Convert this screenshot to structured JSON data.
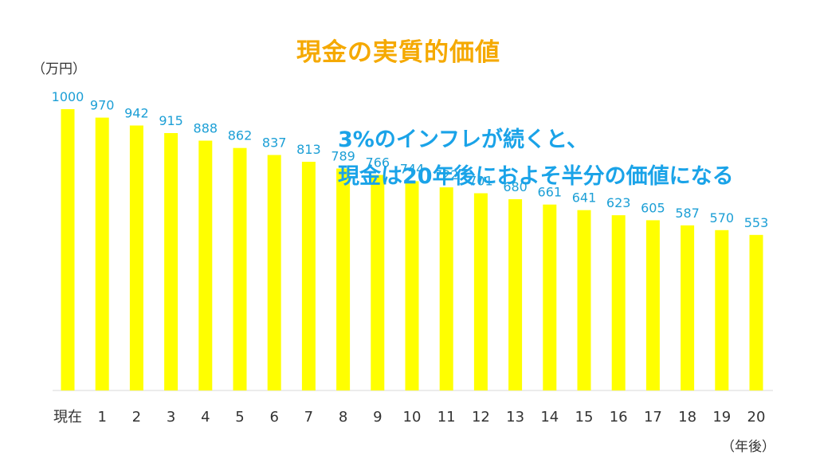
{
  "page": {
    "title": "現金の実質的価値",
    "y_unit": "（万円）",
    "x_unit": "（年後）",
    "message_line1": "3%のインフレが続くと、",
    "message_line2": "現金は20年後におよそ半分の価値になる"
  },
  "colors": {
    "bar": "#ffff00",
    "data_label": "#1c9fd6",
    "title": "#f5a900",
    "message": "#1aa3e8",
    "tick_label": "#333333",
    "axis": "#d9d9d9"
  },
  "chart_data": {
    "type": "bar",
    "title": "現金の実質的価値",
    "xlabel": "（年後）",
    "ylabel": "（万円）",
    "categories": [
      "現在",
      "1",
      "2",
      "3",
      "4",
      "5",
      "6",
      "7",
      "8",
      "9",
      "10",
      "11",
      "12",
      "13",
      "14",
      "15",
      "16",
      "17",
      "18",
      "19",
      "20"
    ],
    "values": [
      1000,
      970,
      942,
      915,
      888,
      862,
      837,
      813,
      789,
      766,
      744,
      722,
      701,
      680,
      661,
      641,
      623,
      605,
      587,
      570,
      553
    ],
    "ylim": [
      0,
      1000
    ],
    "grid": false,
    "legend": "none",
    "data_labels": true
  }
}
